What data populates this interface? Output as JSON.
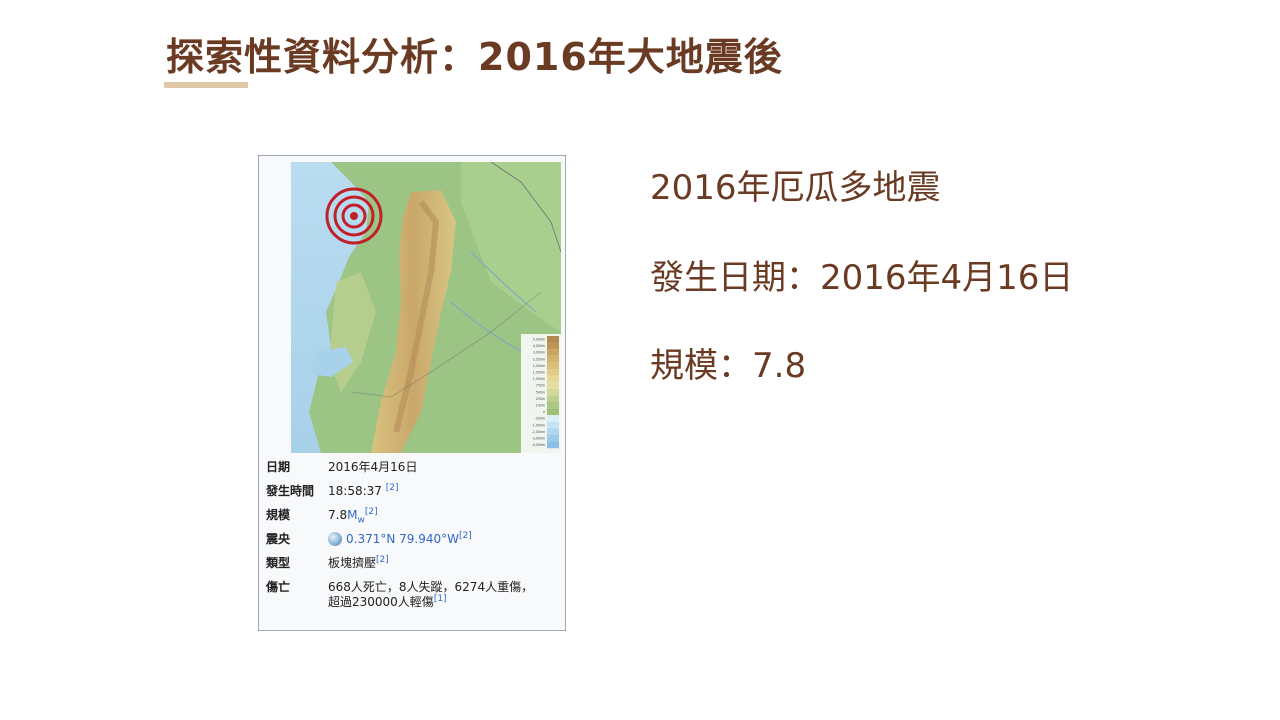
{
  "slide": {
    "title": "探索性資料分析：2016年大地震後"
  },
  "infobox": {
    "legend_ticks": [
      "5,000m",
      "4,000m",
      "3,000m",
      "2,500m",
      "2,000m",
      "1,500m",
      "1,000m",
      "750m",
      "500m",
      "250m",
      "100m",
      "0",
      "-200m",
      "-1,000m",
      "-2,000m",
      "-3,000m",
      "-4,000m"
    ],
    "rows": {
      "date": {
        "label": "日期",
        "value": "2016年4月16日"
      },
      "time": {
        "label": "發生時間",
        "value": "18:58:37",
        "ref": "[2]"
      },
      "magnitude": {
        "label": "規模",
        "value": "7.8",
        "unit": "M",
        "unit_sub": "w",
        "ref": "[2]"
      },
      "epicenter": {
        "label": "震央",
        "icon": "globe-icon",
        "value": "0.371°N 79.940°W",
        "ref": "[2]"
      },
      "type": {
        "label": "類型",
        "value": "板塊擠壓",
        "ref": "[2]"
      },
      "casualties": {
        "label": "傷亡",
        "line1": "668人死亡，8人失蹤，6274人重傷，",
        "line2": "超過230000人輕傷",
        "ref": "[1]"
      }
    }
  },
  "facts": {
    "name": "2016年厄瓜多地震",
    "date": "發生日期：2016年4月16日",
    "magnitude": "規模：7.8"
  },
  "colors": {
    "title": "#6a3a22",
    "accent_bar": "#e0c9a6",
    "epicenter_rings": "#c0202a",
    "link": "#3366cc"
  }
}
